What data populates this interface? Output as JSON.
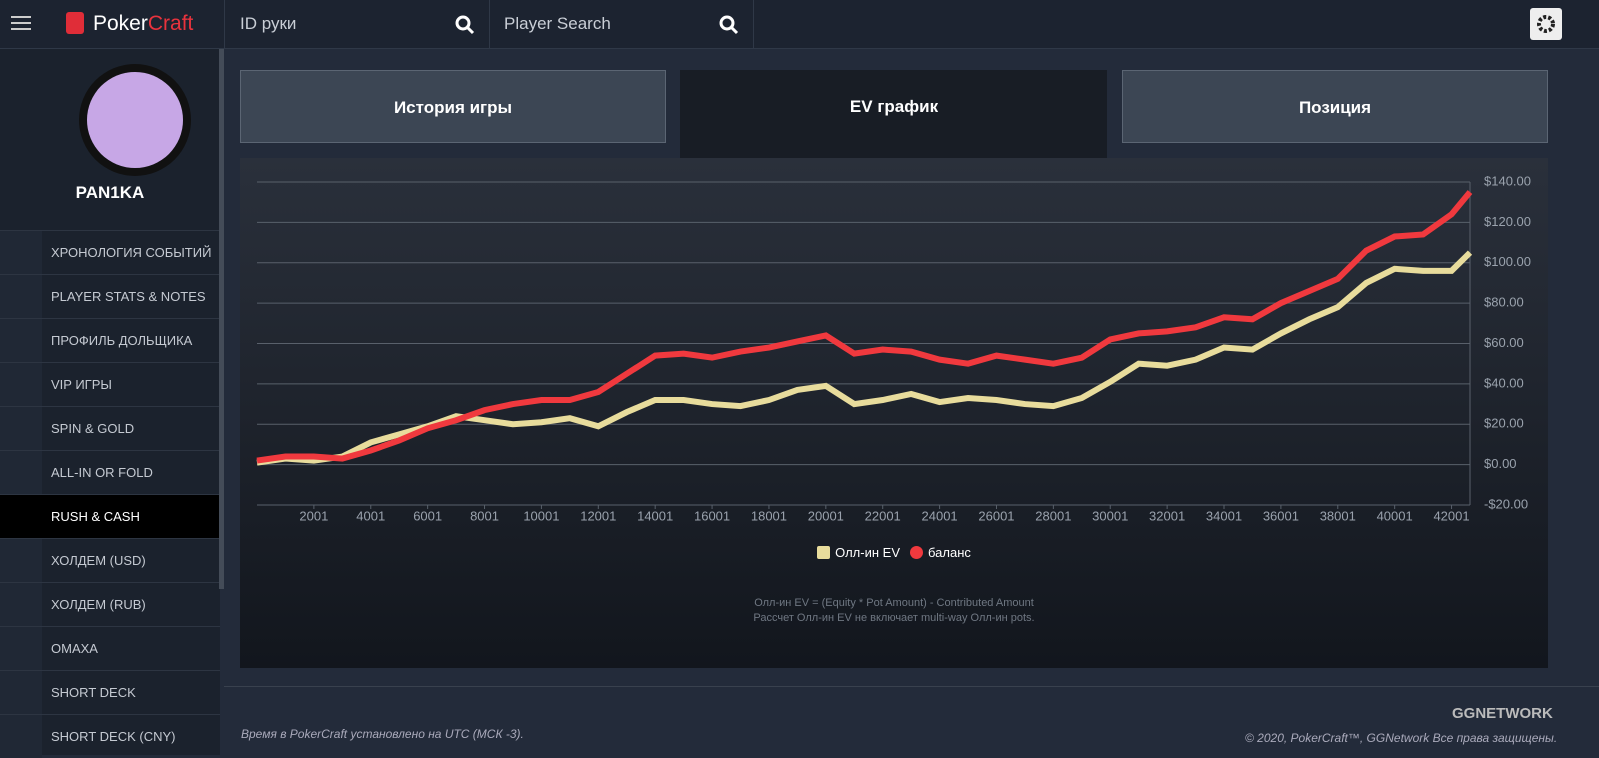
{
  "header": {
    "logo_a": "Poker",
    "logo_b": "Craft",
    "hand_search": "ID руки",
    "player_search": "Player Search"
  },
  "profile": {
    "name": "PAN1KA"
  },
  "menu": [
    "ХРОНОЛОГИЯ СОБЫТИЙ",
    "PLAYER STATS & NOTES",
    "ПРОФИЛЬ ДОЛЬЩИКА",
    "VIP ИГРЫ",
    "SPIN & GOLD",
    "ALL-IN OR FOLD",
    "RUSH & CASH",
    "ХОЛДЕМ (USD)",
    "ХОЛДЕМ (RUB)",
    "OMAXA",
    "SHORT DECK",
    "SHORT DECK (CNY)"
  ],
  "tabs": [
    "История игры",
    "EV график",
    "Позиция"
  ],
  "chart_data": {
    "type": "line",
    "legend": "bottom",
    "x": [
      1,
      1000,
      2001,
      3001,
      4001,
      5001,
      6001,
      7001,
      8001,
      9001,
      10001,
      11001,
      12001,
      13001,
      14001,
      15001,
      16001,
      17001,
      18001,
      19001,
      20001,
      21001,
      22001,
      23001,
      24001,
      25001,
      26001,
      27001,
      28001,
      29001,
      30001,
      31001,
      32001,
      33001,
      34001,
      35001,
      36001,
      37001,
      38001,
      39001,
      40001,
      41001,
      42001,
      42650
    ],
    "series": [
      {
        "name": "Олл-ин EV",
        "color": "#e8dc9c",
        "values": [
          1,
          3,
          2,
          4,
          11,
          15,
          19,
          24,
          22,
          20,
          21,
          23,
          19,
          26,
          32,
          32,
          30,
          29,
          32,
          37,
          39,
          30,
          32,
          35,
          31,
          33,
          32,
          30,
          29,
          33,
          41,
          50,
          49,
          52,
          58,
          57,
          65,
          72,
          78,
          90,
          97,
          96,
          96,
          105
        ]
      },
      {
        "name": "баланс",
        "color": "#f0393e",
        "values": [
          2,
          4,
          4,
          3,
          7,
          12,
          18,
          22,
          27,
          30,
          32,
          32,
          36,
          45,
          54,
          55,
          53,
          56,
          58,
          61,
          64,
          55,
          57,
          56,
          52,
          50,
          54,
          52,
          50,
          53,
          62,
          65,
          66,
          68,
          73,
          72,
          80,
          86,
          92,
          106,
          113,
          114,
          124,
          135
        ]
      }
    ],
    "xlim": [
      1,
      42650
    ],
    "ylim": [
      -20,
      140
    ],
    "xticks": [
      2001,
      4001,
      6001,
      8001,
      10001,
      12001,
      14001,
      16001,
      18001,
      20001,
      22001,
      24001,
      26001,
      28001,
      30001,
      32001,
      34001,
      36001,
      38001,
      40001,
      42001
    ],
    "yticks": [
      {
        "value": -20,
        "label": "-$20.00"
      },
      {
        "value": 0,
        "label": "$0.00"
      },
      {
        "value": 20,
        "label": "$20.00"
      },
      {
        "value": 40,
        "label": "$40.00"
      },
      {
        "value": 60,
        "label": "$60.00"
      },
      {
        "value": 80,
        "label": "$80.00"
      },
      {
        "value": 100,
        "label": "$100.00"
      },
      {
        "value": 120,
        "label": "$120.00"
      },
      {
        "value": 140,
        "label": "$140.00"
      }
    ],
    "grid": true
  },
  "notes": [
    "Олл-ин EV = (Equity * Pot Amount) - Contributed Amount",
    "Рассчет Олл-ин EV не включает multi-way Олл-ин pots."
  ],
  "footer": {
    "left": "Время в PokerCraft установлено на UTC (МСК -3).",
    "brand": "GGNETWORK",
    "right": "© 2020, PokerCraft™, GGNetwork Все права защищены."
  }
}
